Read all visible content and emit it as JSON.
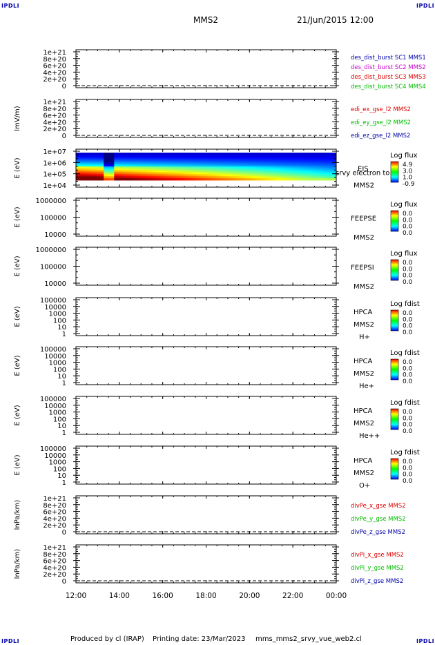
{
  "corner_label": "IPDLI",
  "header": {
    "mission": "MMS2",
    "date_time": "21/Jun/2015 12:00"
  },
  "footer": {
    "produced_by": "Produced by cl (IRAP)",
    "printing_date": "Printing date: 23/Mar/2023",
    "filename": "mms_mms2_srvy_vue_web2.cl"
  },
  "colors": {
    "red": "#dd0000",
    "magenta": "#cc00cc",
    "green": "#00bb00",
    "blue": "#0000aa",
    "black": "#000000"
  },
  "chart_data": {
    "type": "heatmap",
    "x_tick_labels": [
      "12:00",
      "14:00",
      "16:00",
      "18:00",
      "20:00",
      "22:00",
      "00:00"
    ],
    "x_range_hours": [
      12,
      24
    ],
    "panels": [
      {
        "kind": "line",
        "ylabel": "",
        "y_ticks": [
          "1e+21",
          "8e+20",
          "6e+20",
          "4e+20",
          "2e+20",
          "0"
        ],
        "legend": [
          {
            "text": "des_dist_burst SC1 MMS1",
            "color": "#0000aa"
          },
          {
            "text": "des_dist_burst SC2 MMS2",
            "color": "#cc00cc"
          },
          {
            "text": "des_dist_burst SC3 MMS3",
            "color": "#dd0000"
          },
          {
            "text": "des_dist_burst SC4 MMS4",
            "color": "#00bb00"
          }
        ]
      },
      {
        "kind": "line",
        "ylabel": "lmV/m)",
        "y_ticks": [
          "1e+21",
          "8e+20",
          "6e+20",
          "4e+20",
          "2e+20",
          "0"
        ],
        "legend": [
          {
            "text": "edi_ex_gse_l2 MMS2",
            "color": "#dd0000"
          },
          {
            "text": "edi_ey_gse_l2 MMS2",
            "color": "#00bb00"
          },
          {
            "text": "edi_ez_gse_l2 MMS2",
            "color": "#0000aa"
          }
        ]
      },
      {
        "kind": "spectrogram",
        "ylabel": "E (eV)",
        "y_ticks": [
          "1e+07",
          "1e+06",
          "1e+05",
          "1e+04"
        ],
        "right_labels": [
          "EIS",
          "MMS2"
        ],
        "overlay_text": "srvy electron to",
        "colorbar": {
          "title": "Log flux",
          "values": [
            "4.9",
            "3.0",
            "1.0",
            "-0.9"
          ]
        }
      },
      {
        "kind": "spectrogram",
        "ylabel": "E (eV)",
        "y_ticks": [
          "1000000",
          "100000",
          "10000"
        ],
        "right_labels": [
          "FEEPSE",
          "MMS2"
        ],
        "colorbar": {
          "title": "Log flux",
          "values": [
            "0.0",
            "0.0",
            "0.0",
            "0.0"
          ]
        }
      },
      {
        "kind": "spectrogram",
        "ylabel": "E (eV)",
        "y_ticks": [
          "1000000",
          "100000",
          "10000"
        ],
        "right_labels": [
          "FEEPSI",
          "MMS2"
        ],
        "colorbar": {
          "title": "Log flux",
          "values": [
            "0.0",
            "0.0",
            "0.0",
            "0.0"
          ]
        }
      },
      {
        "kind": "spectrogram",
        "ylabel": "E (eV)",
        "y_ticks": [
          "100000",
          "10000",
          "1000",
          "100",
          "10",
          "1"
        ],
        "right_labels": [
          "HPCA",
          "MMS2",
          "H+"
        ],
        "colorbar": {
          "title": "Log fdist",
          "values": [
            "0.0",
            "0.0",
            "0.0",
            "0.0"
          ]
        }
      },
      {
        "kind": "spectrogram",
        "ylabel": "E (eV)",
        "y_ticks": [
          "100000",
          "10000",
          "1000",
          "100",
          "10",
          "1"
        ],
        "right_labels": [
          "HPCA",
          "MMS2",
          "He+"
        ],
        "colorbar": {
          "title": "Log fdist",
          "values": [
            "0.0",
            "0.0",
            "0.0",
            "0.0"
          ]
        }
      },
      {
        "kind": "spectrogram",
        "ylabel": "E (eV)",
        "y_ticks": [
          "100000",
          "10000",
          "1000",
          "100",
          "10",
          "1"
        ],
        "right_labels": [
          "HPCA",
          "MMS2",
          "He++"
        ],
        "colorbar": {
          "title": "Log fdist",
          "values": [
            "0.0",
            "0.0",
            "0.0",
            "0.0"
          ]
        }
      },
      {
        "kind": "spectrogram",
        "ylabel": "E (eV)",
        "y_ticks": [
          "100000",
          "10000",
          "1000",
          "100",
          "10",
          "1"
        ],
        "right_labels": [
          "HPCA",
          "MMS2",
          "O+"
        ],
        "colorbar": {
          "title": "Log fdist",
          "values": [
            "0.0",
            "0.0",
            "0.0",
            "0.0"
          ]
        }
      },
      {
        "kind": "line",
        "ylabel": "lnPa/km)",
        "y_ticks": [
          "1e+21",
          "8e+20",
          "6e+20",
          "4e+20",
          "2e+20",
          "0"
        ],
        "legend": [
          {
            "text": "divPe_x_gse MMS2",
            "color": "#dd0000"
          },
          {
            "text": "divPe_y_gse MMS2",
            "color": "#00bb00"
          },
          {
            "text": "divPe_z_gse MMS2",
            "color": "#0000aa"
          }
        ]
      },
      {
        "kind": "line",
        "ylabel": "lnPa/km)",
        "y_ticks": [
          "1e+21",
          "8e+20",
          "6e+20",
          "4e+20",
          "2e+20",
          "0"
        ],
        "legend": [
          {
            "text": "divPi_x_gse MMS2",
            "color": "#dd0000"
          },
          {
            "text": "divPi_y_gse MMS2",
            "color": "#00bb00"
          },
          {
            "text": "divPi_z_gse MMS2",
            "color": "#0000aa"
          }
        ]
      }
    ]
  }
}
